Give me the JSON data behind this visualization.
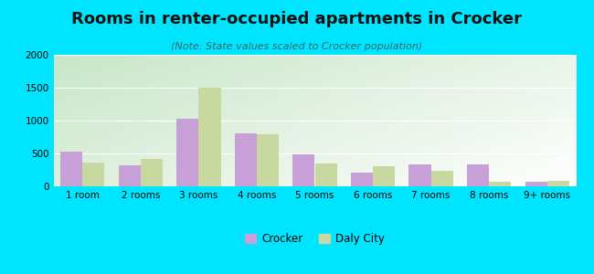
{
  "categories": [
    "1 room",
    "2 rooms",
    "3 rooms",
    "4 rooms",
    "5 rooms",
    "6 rooms",
    "7 rooms",
    "8 rooms",
    "9+ rooms"
  ],
  "crocker": [
    530,
    320,
    1030,
    800,
    490,
    215,
    340,
    330,
    65
  ],
  "daly_city": [
    360,
    420,
    1500,
    790,
    345,
    310,
    240,
    70,
    85
  ],
  "crocker_color": "#c8a0d8",
  "daly_city_color": "#c8d8a0",
  "title": "Rooms in renter-occupied apartments in Crocker",
  "subtitle": "(Note: State values scaled to Crocker population)",
  "bg_outer": "#00e5ff",
  "ylim": [
    0,
    2000
  ],
  "yticks": [
    0,
    500,
    1000,
    1500,
    2000
  ],
  "legend_crocker": "Crocker",
  "legend_daly": "Daly City",
  "title_fontsize": 13,
  "subtitle_fontsize": 8,
  "tick_fontsize": 7.5
}
